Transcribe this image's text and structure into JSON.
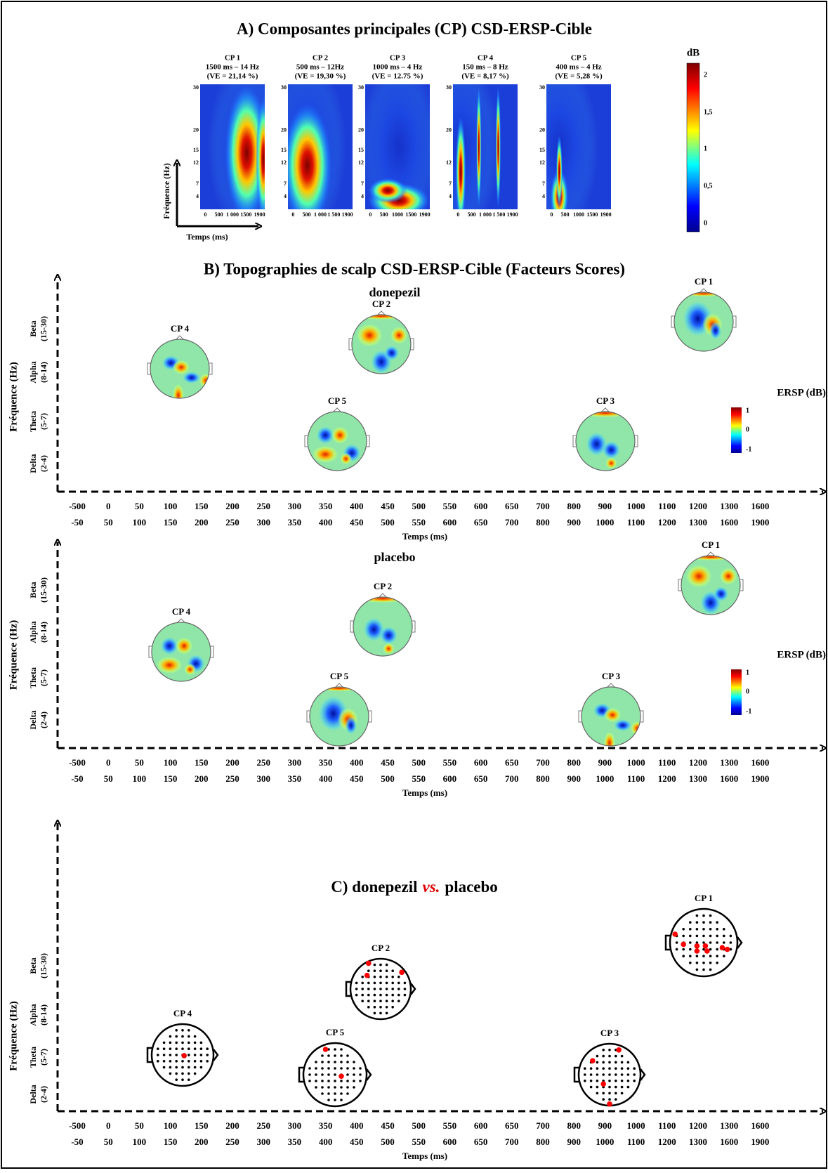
{
  "panel_a": {
    "title": "A) Composantes principales (CP) CSD-ERSP-Cible",
    "y_label": "Fréquence (Hz)",
    "x_label": "Temps (ms)",
    "colorbar": {
      "label": "dB",
      "ticks": [
        "2",
        "1,5",
        "1",
        "0,5",
        "0"
      ]
    },
    "components": [
      {
        "name": "CP 1",
        "peak": "1500 ms – 14 Hz",
        "ve": "(VE = 21,14 %)",
        "yticks": [
          "30",
          "20",
          "15",
          "12",
          "7",
          "4"
        ],
        "xticks": [
          "0",
          "500",
          "1 000",
          "1500",
          "1900"
        ]
      },
      {
        "name": "CP 2",
        "peak": "500 ms – 12Hz",
        "ve": "(VE = 19,30 %)",
        "yticks": [
          "30",
          "20",
          "15",
          "12",
          "7",
          "4"
        ],
        "xticks": [
          "0",
          "500",
          "1 000",
          "1 500",
          "1900"
        ]
      },
      {
        "name": "CP 3",
        "peak": "1000 ms – 4 Hz",
        "ve": "(VE = 12.75 %)",
        "yticks": [
          "30",
          "20",
          "15",
          "12",
          "7",
          "4"
        ],
        "xticks": [
          "0",
          "500",
          "1000",
          "1500",
          "1900"
        ]
      },
      {
        "name": "CP 4",
        "peak": "150 ms – 8 Hz",
        "ve": "(VE = 8,17 %)",
        "yticks": [
          "30",
          "20",
          "12",
          "7",
          "4"
        ],
        "xticks": [
          "0",
          "500",
          "1 000",
          "1 500",
          "1900"
        ]
      },
      {
        "name": "CP 5",
        "peak": "400 ms – 4 Hz",
        "ve": "(VE = 5,28 %)",
        "yticks": [
          "30",
          "20",
          "15",
          "12",
          "7",
          "4"
        ],
        "xticks": [
          "0",
          "500",
          "1000",
          "1500",
          "1900"
        ]
      }
    ]
  },
  "panel_b": {
    "title": "B) Topographies de scalp CSD-ERSP-Cible (Facteurs Scores)",
    "conditions": [
      "donepezil",
      "placebo"
    ],
    "colorbar": {
      "label": "ERSP (dB)",
      "ticks": [
        "1",
        "0",
        "-1"
      ]
    }
  },
  "panel_c": {
    "title_start": "C) donepezil",
    "title_vs": "vs.",
    "title_end": "placebo"
  },
  "freq_axis": {
    "label": "Fréquence (Hz)",
    "bands": [
      {
        "name": "Beta",
        "range": "(15-30)"
      },
      {
        "name": "Alpha",
        "range": "(8-14)"
      },
      {
        "name": "Theta",
        "range": "(5-7)"
      },
      {
        "name": "Delta",
        "range": "(2-4)"
      }
    ]
  },
  "time_axis": {
    "label": "Temps (ms)",
    "row1": [
      "-500",
      "0",
      "50",
      "100",
      "150",
      "200",
      "250",
      "300",
      "350",
      "400",
      "450",
      "500",
      "550",
      "600",
      "650",
      "700",
      "800",
      "900",
      "1000",
      "1100",
      "1200",
      "1300",
      "1600"
    ],
    "row2": [
      "-50",
      "50",
      "100",
      "150",
      "200",
      "250",
      "300",
      "350",
      "400",
      "450",
      "500",
      "550",
      "600",
      "650",
      "700",
      "800",
      "900",
      "1000",
      "1100",
      "1200",
      "1300",
      "1600",
      "1900"
    ]
  }
}
